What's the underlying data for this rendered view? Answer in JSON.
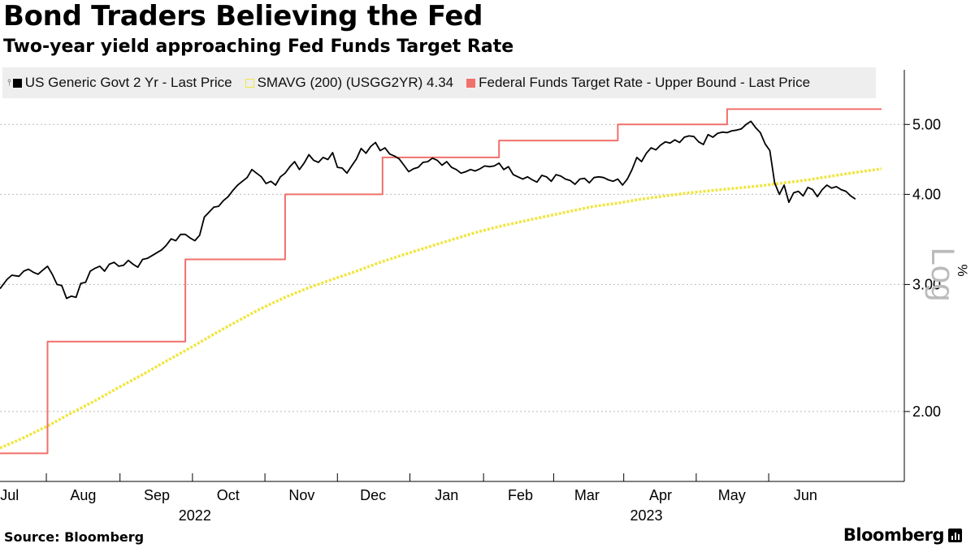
{
  "title": "Bond Traders Believing the Fed",
  "subtitle": "Two-year yield approaching Fed Funds Target Rate",
  "legend": {
    "series1": "US Generic Govt 2 Yr - Last Price",
    "series2": "SMAVG (200) (USGG2YR) 4.34",
    "series3": "Federal Funds Target Rate - Upper Bound - Last Price"
  },
  "source": "Source: Bloomberg",
  "brand": "Bloomberg",
  "colors": {
    "yield": "#000000",
    "sma": "#f0e640",
    "ffr": "#f0706a",
    "legend_bg": "#eeeeee",
    "axis": "#000000"
  },
  "icons": {
    "legend_pin": "pin-icon",
    "brand_mark": "bloomberg-terminal-icon"
  },
  "chart_data": {
    "type": "line",
    "title": "Bond Traders Believing the Fed",
    "subtitle": "Two-year yield approaching Fed Funds Target Rate",
    "xlabel": "",
    "ylabel": "%",
    "yscale": "log",
    "yscale_label": "Log",
    "ylim": [
      1.6,
      5.8
    ],
    "xlim": [
      0,
      371
    ],
    "y_ticks": [
      2.0,
      3.0,
      4.0,
      5.0
    ],
    "y_tick_labels": [
      "2.00",
      "3.00",
      "4.00",
      "5.00"
    ],
    "x_ticks": [
      {
        "label": "Jul",
        "day": 4
      },
      {
        "label": "Aug",
        "day": 35
      },
      {
        "label": "Sep",
        "day": 66
      },
      {
        "label": "Oct",
        "day": 96
      },
      {
        "label": "Nov",
        "day": 127
      },
      {
        "label": "Dec",
        "day": 157
      },
      {
        "label": "Jan",
        "day": 188
      },
      {
        "label": "Feb",
        "day": 219
      },
      {
        "label": "Mar",
        "day": 247
      },
      {
        "label": "Apr",
        "day": 278
      },
      {
        "label": "May",
        "day": 308
      },
      {
        "label": "Jun",
        "day": 339
      }
    ],
    "year_labels": [
      {
        "label": "2022",
        "day": 82
      },
      {
        "label": "2023",
        "day": 272
      }
    ],
    "legend_position": "top",
    "series": [
      {
        "name": "US Generic Govt 2 Yr - Last Price",
        "kind": "line",
        "points": [
          [
            0,
            2.96
          ],
          [
            3,
            3.05
          ],
          [
            5,
            3.09
          ],
          [
            8,
            3.08
          ],
          [
            10,
            3.13
          ],
          [
            12,
            3.15
          ],
          [
            14,
            3.12
          ],
          [
            16,
            3.1
          ],
          [
            18,
            3.14
          ],
          [
            20,
            3.18
          ],
          [
            22,
            3.1
          ],
          [
            24,
            3.0
          ],
          [
            26,
            2.99
          ],
          [
            28,
            2.87
          ],
          [
            30,
            2.89
          ],
          [
            32,
            2.88
          ],
          [
            34,
            3.01
          ],
          [
            36,
            3.02
          ],
          [
            38,
            3.13
          ],
          [
            40,
            3.16
          ],
          [
            42,
            3.18
          ],
          [
            44,
            3.13
          ],
          [
            46,
            3.2
          ],
          [
            48,
            3.22
          ],
          [
            50,
            3.18
          ],
          [
            52,
            3.19
          ],
          [
            54,
            3.24
          ],
          [
            56,
            3.2
          ],
          [
            58,
            3.17
          ],
          [
            60,
            3.25
          ],
          [
            62,
            3.26
          ],
          [
            64,
            3.29
          ],
          [
            66,
            3.32
          ],
          [
            68,
            3.35
          ],
          [
            70,
            3.4
          ],
          [
            72,
            3.47
          ],
          [
            74,
            3.45
          ],
          [
            76,
            3.52
          ],
          [
            78,
            3.52
          ],
          [
            80,
            3.48
          ],
          [
            82,
            3.45
          ],
          [
            84,
            3.51
          ],
          [
            86,
            3.72
          ],
          [
            88,
            3.78
          ],
          [
            90,
            3.84
          ],
          [
            92,
            3.85
          ],
          [
            94,
            3.92
          ],
          [
            96,
            3.97
          ],
          [
            98,
            4.05
          ],
          [
            100,
            4.12
          ],
          [
            102,
            4.17
          ],
          [
            104,
            4.22
          ],
          [
            106,
            4.33
          ],
          [
            108,
            4.28
          ],
          [
            110,
            4.23
          ],
          [
            112,
            4.14
          ],
          [
            114,
            4.17
          ],
          [
            116,
            4.12
          ],
          [
            118,
            4.23
          ],
          [
            120,
            4.28
          ],
          [
            122,
            4.37
          ],
          [
            124,
            4.44
          ],
          [
            126,
            4.33
          ],
          [
            128,
            4.42
          ],
          [
            130,
            4.54
          ],
          [
            132,
            4.46
          ],
          [
            134,
            4.43
          ],
          [
            136,
            4.5
          ],
          [
            138,
            4.47
          ],
          [
            140,
            4.57
          ],
          [
            142,
            4.36
          ],
          [
            144,
            4.35
          ],
          [
            146,
            4.28
          ],
          [
            148,
            4.38
          ],
          [
            150,
            4.48
          ],
          [
            152,
            4.63
          ],
          [
            154,
            4.56
          ],
          [
            156,
            4.66
          ],
          [
            158,
            4.72
          ],
          [
            160,
            4.6
          ],
          [
            162,
            4.64
          ],
          [
            164,
            4.55
          ],
          [
            166,
            4.52
          ],
          [
            168,
            4.48
          ],
          [
            170,
            4.39
          ],
          [
            172,
            4.3
          ],
          [
            174,
            4.34
          ],
          [
            176,
            4.36
          ],
          [
            178,
            4.43
          ],
          [
            180,
            4.44
          ],
          [
            182,
            4.49
          ],
          [
            184,
            4.46
          ],
          [
            186,
            4.39
          ],
          [
            188,
            4.44
          ],
          [
            190,
            4.36
          ],
          [
            192,
            4.33
          ],
          [
            194,
            4.28
          ],
          [
            196,
            4.3
          ],
          [
            198,
            4.33
          ],
          [
            200,
            4.31
          ],
          [
            202,
            4.34
          ],
          [
            204,
            4.38
          ],
          [
            206,
            4.37
          ],
          [
            208,
            4.38
          ],
          [
            210,
            4.42
          ],
          [
            212,
            4.33
          ],
          [
            214,
            4.37
          ],
          [
            216,
            4.26
          ],
          [
            218,
            4.23
          ],
          [
            220,
            4.2
          ],
          [
            222,
            4.23
          ],
          [
            224,
            4.19
          ],
          [
            226,
            4.16
          ],
          [
            228,
            4.25
          ],
          [
            230,
            4.23
          ],
          [
            232,
            4.17
          ],
          [
            234,
            4.26
          ],
          [
            236,
            4.24
          ],
          [
            238,
            4.2
          ],
          [
            240,
            4.18
          ],
          [
            242,
            4.13
          ],
          [
            244,
            4.2
          ],
          [
            246,
            4.21
          ],
          [
            248,
            4.15
          ],
          [
            250,
            4.22
          ],
          [
            252,
            4.23
          ],
          [
            254,
            4.22
          ],
          [
            256,
            4.19
          ],
          [
            258,
            4.17
          ],
          [
            260,
            4.2
          ],
          [
            262,
            4.12
          ],
          [
            264,
            4.2
          ],
          [
            266,
            4.33
          ],
          [
            268,
            4.5
          ],
          [
            270,
            4.44
          ],
          [
            272,
            4.56
          ],
          [
            274,
            4.64
          ],
          [
            276,
            4.61
          ],
          [
            278,
            4.68
          ],
          [
            280,
            4.73
          ],
          [
            282,
            4.71
          ],
          [
            284,
            4.76
          ],
          [
            286,
            4.72
          ],
          [
            288,
            4.8
          ],
          [
            290,
            4.82
          ],
          [
            292,
            4.81
          ],
          [
            294,
            4.73
          ],
          [
            296,
            4.69
          ],
          [
            298,
            4.84
          ],
          [
            300,
            4.8
          ],
          [
            302,
            4.86
          ],
          [
            304,
            4.88
          ],
          [
            306,
            4.87
          ],
          [
            308,
            4.9
          ],
          [
            310,
            4.91
          ],
          [
            312,
            4.93
          ],
          [
            314,
            5.0
          ],
          [
            316,
            5.05
          ],
          [
            318,
            4.95
          ],
          [
            320,
            4.87
          ],
          [
            322,
            4.7
          ],
          [
            324,
            4.6
          ],
          [
            326,
            4.15
          ],
          [
            328,
            4.0
          ],
          [
            330,
            4.12
          ],
          [
            332,
            3.9
          ],
          [
            334,
            4.02
          ],
          [
            336,
            4.04
          ],
          [
            338,
            3.98
          ],
          [
            340,
            4.09
          ],
          [
            342,
            4.06
          ],
          [
            344,
            3.97
          ],
          [
            346,
            4.06
          ],
          [
            348,
            4.12
          ],
          [
            350,
            4.08
          ],
          [
            352,
            4.1
          ],
          [
            354,
            4.06
          ],
          [
            356,
            4.04
          ],
          [
            358,
            3.98
          ],
          [
            360,
            3.94
          ]
        ]
      },
      {
        "name": "SMAVG (200) (USGG2YR) 4.34",
        "kind": "dotted-line",
        "points": [
          [
            0,
            1.78
          ],
          [
            10,
            1.84
          ],
          [
            20,
            1.91
          ],
          [
            30,
            1.99
          ],
          [
            40,
            2.07
          ],
          [
            50,
            2.16
          ],
          [
            60,
            2.25
          ],
          [
            70,
            2.35
          ],
          [
            80,
            2.45
          ],
          [
            90,
            2.56
          ],
          [
            100,
            2.67
          ],
          [
            110,
            2.78
          ],
          [
            120,
            2.88
          ],
          [
            130,
            2.97
          ],
          [
            140,
            3.05
          ],
          [
            150,
            3.13
          ],
          [
            160,
            3.22
          ],
          [
            170,
            3.3
          ],
          [
            180,
            3.38
          ],
          [
            190,
            3.46
          ],
          [
            200,
            3.54
          ],
          [
            210,
            3.61
          ],
          [
            220,
            3.67
          ],
          [
            230,
            3.73
          ],
          [
            240,
            3.79
          ],
          [
            250,
            3.85
          ],
          [
            260,
            3.89
          ],
          [
            270,
            3.94
          ],
          [
            280,
            3.98
          ],
          [
            290,
            4.02
          ],
          [
            300,
            4.05
          ],
          [
            310,
            4.08
          ],
          [
            320,
            4.11
          ],
          [
            330,
            4.15
          ],
          [
            340,
            4.19
          ],
          [
            350,
            4.24
          ],
          [
            360,
            4.29
          ],
          [
            371,
            4.34
          ]
        ]
      },
      {
        "name": "Federal Funds Target Rate - Upper Bound - Last Price",
        "kind": "step",
        "points": [
          [
            0,
            1.75
          ],
          [
            20,
            1.75
          ],
          [
            20,
            2.5
          ],
          [
            78,
            2.5
          ],
          [
            78,
            3.25
          ],
          [
            120,
            3.25
          ],
          [
            120,
            4.0
          ],
          [
            161,
            4.0
          ],
          [
            161,
            4.5
          ],
          [
            210,
            4.5
          ],
          [
            210,
            4.75
          ],
          [
            260,
            4.75
          ],
          [
            260,
            5.0
          ],
          [
            306,
            5.0
          ],
          [
            306,
            5.25
          ],
          [
            371,
            5.25
          ]
        ]
      }
    ]
  }
}
